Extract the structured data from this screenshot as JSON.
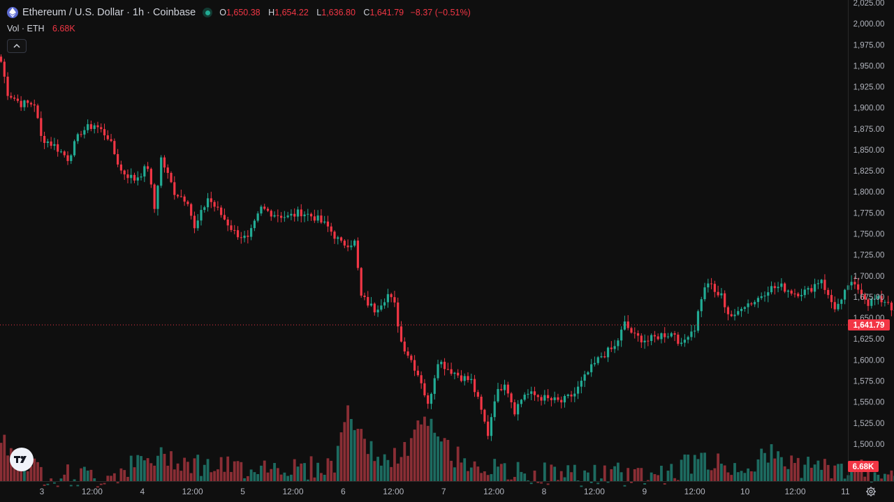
{
  "symbol": {
    "title": "Ethereum / U.S. Dollar · 1h · Coinbase",
    "icon": "ethereum-icon"
  },
  "ohlc": {
    "open_label": "O",
    "open": "1,650.38",
    "high_label": "H",
    "high": "1,654.22",
    "low_label": "L",
    "low": "1,636.80",
    "close_label": "C",
    "close": "1,641.79",
    "change": "−8.37 (−0.51%)"
  },
  "volume": {
    "label": "Vol · ETH",
    "value": "6.68K"
  },
  "colors": {
    "background": "#0f0f0f",
    "up": "#22ab94",
    "down": "#f23645",
    "up_volume": "#1d6b60",
    "down_volume": "#8a2e35",
    "text": "#d1d4dc",
    "axis_text": "#b2b5be"
  },
  "chart_data": {
    "type": "candlestick",
    "title": "",
    "xlabel": "",
    "ylabel": "",
    "ylim": [
      1480,
      2025
    ],
    "grid": false,
    "price_axis_labels": [
      "2,025.00",
      "2,000.00",
      "1,975.00",
      "1,950.00",
      "1,925.00",
      "1,900.00",
      "1,875.00",
      "1,850.00",
      "1,825.00",
      "1,800.00",
      "1,775.00",
      "1,750.00",
      "1,725.00",
      "1,700.00",
      "1,675.00",
      "1,650.00",
      "1,625.00",
      "1,600.00",
      "1,575.00",
      "1,550.00",
      "1,525.00",
      "1,500.00"
    ],
    "time_axis_labels": [
      "3",
      "12:00",
      "4",
      "12:00",
      "5",
      "12:00",
      "6",
      "12:00",
      "7",
      "12:00",
      "8",
      "12:00",
      "9",
      "12:00",
      "10",
      "12:00",
      "11"
    ],
    "last_price_label": "1,641.79",
    "last_price": 1641.79,
    "volume_label": "6.68K",
    "close_path": [
      [
        0,
        1955
      ],
      [
        2,
        1918
      ],
      [
        6,
        1905
      ],
      [
        10,
        1905
      ],
      [
        12,
        1865
      ],
      [
        16,
        1855
      ],
      [
        20,
        1840
      ],
      [
        24,
        1872
      ],
      [
        28,
        1880
      ],
      [
        32,
        1866
      ],
      [
        36,
        1825
      ],
      [
        40,
        1815
      ],
      [
        44,
        1830
      ],
      [
        46,
        1780
      ],
      [
        48,
        1840
      ],
      [
        52,
        1800
      ],
      [
        56,
        1790
      ],
      [
        58,
        1755
      ],
      [
        62,
        1793
      ],
      [
        66,
        1773
      ],
      [
        70,
        1752
      ],
      [
        74,
        1743
      ],
      [
        78,
        1780
      ],
      [
        82,
        1774
      ],
      [
        86,
        1770
      ],
      [
        90,
        1776
      ],
      [
        94,
        1770
      ],
      [
        98,
        1758
      ],
      [
        102,
        1738
      ],
      [
        106,
        1740
      ],
      [
        108,
        1675
      ],
      [
        112,
        1660
      ],
      [
        116,
        1678
      ],
      [
        118,
        1665
      ],
      [
        120,
        1622
      ],
      [
        123,
        1600
      ],
      [
        126,
        1575
      ],
      [
        128,
        1545
      ],
      [
        131,
        1600
      ],
      [
        134,
        1590
      ],
      [
        138,
        1580
      ],
      [
        141,
        1575
      ],
      [
        143,
        1552
      ],
      [
        146,
        1512
      ],
      [
        148,
        1555
      ],
      [
        151,
        1575
      ],
      [
        154,
        1540
      ],
      [
        157,
        1560
      ],
      [
        160,
        1558
      ],
      [
        164,
        1553
      ],
      [
        168,
        1550
      ],
      [
        172,
        1560
      ],
      [
        176,
        1585
      ],
      [
        180,
        1605
      ],
      [
        184,
        1615
      ],
      [
        187,
        1643
      ],
      [
        190,
        1628
      ],
      [
        194,
        1623
      ],
      [
        198,
        1630
      ],
      [
        202,
        1632
      ],
      [
        204,
        1616
      ],
      [
        206,
        1632
      ],
      [
        208,
        1638
      ],
      [
        210,
        1675
      ],
      [
        212,
        1693
      ],
      [
        214,
        1680
      ],
      [
        216,
        1676
      ],
      [
        218,
        1656
      ],
      [
        220,
        1650
      ],
      [
        222,
        1665
      ],
      [
        226,
        1670
      ],
      [
        230,
        1685
      ],
      [
        234,
        1687
      ],
      [
        238,
        1680
      ],
      [
        242,
        1682
      ],
      [
        244,
        1690
      ],
      [
        246,
        1697
      ],
      [
        248,
        1675
      ],
      [
        250,
        1663
      ],
      [
        252,
        1668
      ],
      [
        254,
        1690
      ],
      [
        256,
        1687
      ],
      [
        258,
        1682
      ],
      [
        260,
        1668
      ],
      [
        262,
        1672
      ],
      [
        266,
        1670
      ],
      [
        268,
        1655
      ],
      [
        270,
        1640
      ],
      [
        272,
        1628
      ],
      [
        274,
        1640
      ],
      [
        276,
        1652
      ],
      [
        278,
        1660
      ],
      [
        280,
        1645
      ],
      [
        282,
        1635
      ],
      [
        284,
        1640
      ],
      [
        286,
        1630
      ],
      [
        290,
        1627
      ],
      [
        294,
        1632
      ],
      [
        296,
        1622
      ],
      [
        298,
        1628
      ],
      [
        300,
        1632
      ],
      [
        302,
        1650
      ],
      [
        303,
        1641.79
      ]
    ],
    "volume_path": [
      [
        0,
        1500
      ],
      [
        12,
        1460
      ],
      [
        30,
        1455
      ],
      [
        40,
        1470
      ],
      [
        50,
        1480
      ],
      [
        60,
        1470
      ],
      [
        70,
        1465
      ],
      [
        80,
        1470
      ],
      [
        90,
        1465
      ],
      [
        100,
        1470
      ],
      [
        104,
        1540
      ],
      [
        108,
        1500
      ],
      [
        116,
        1470
      ],
      [
        122,
        1490
      ],
      [
        126,
        1520
      ],
      [
        130,
        1510
      ],
      [
        136,
        1480
      ],
      [
        144,
        1470
      ],
      [
        150,
        1460
      ],
      [
        160,
        1460
      ],
      [
        180,
        1458
      ],
      [
        200,
        1460
      ],
      [
        210,
        1478
      ],
      [
        214,
        1472
      ],
      [
        220,
        1466
      ],
      [
        232,
        1482
      ],
      [
        240,
        1468
      ],
      [
        260,
        1462
      ],
      [
        280,
        1470
      ],
      [
        290,
        1458
      ],
      [
        300,
        1462
      ],
      [
        303,
        1478
      ]
    ]
  }
}
